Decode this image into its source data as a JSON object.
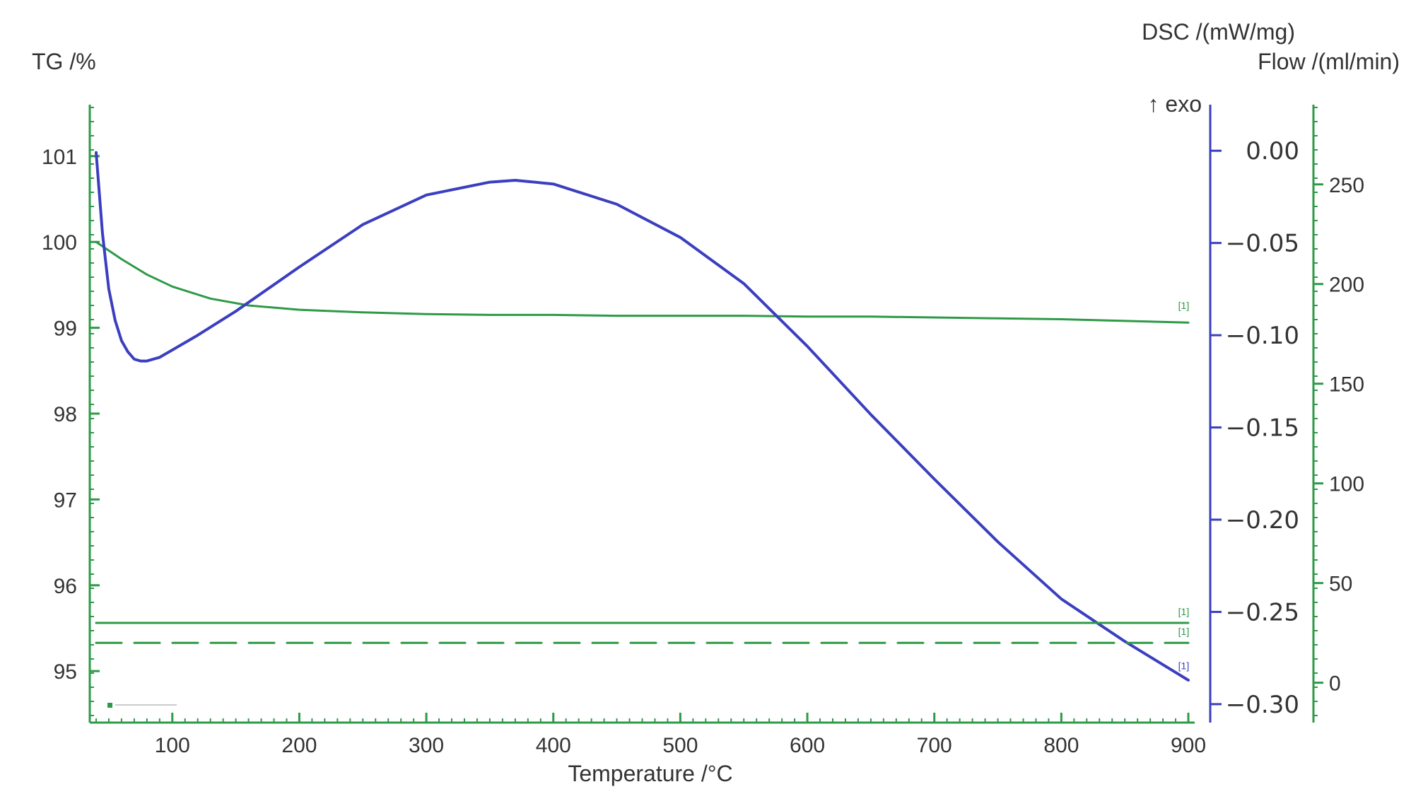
{
  "colors": {
    "tg": "#2e9a47",
    "dsc": "#3b3fbf",
    "flow": "#2e9a47",
    "text": "#333333"
  },
  "chart_data": {
    "type": "line",
    "title": "",
    "xlabel": "Temperature /°C",
    "xlim": [
      35,
      905
    ],
    "x_ticks": [
      100,
      200,
      300,
      400,
      500,
      600,
      700,
      800,
      900
    ],
    "y_axes": {
      "tg": {
        "label": "TG /%",
        "lim": [
          94.4,
          101.6
        ],
        "ticks": [
          95,
          96,
          97,
          98,
          99,
          100,
          101
        ]
      },
      "dsc": {
        "label": "DSC /(mW/mg)",
        "exo_label": "↑ exo",
        "lim": [
          -0.31,
          0.025
        ],
        "ticks": [
          0.0,
          -0.05,
          -0.1,
          -0.15,
          -0.2,
          -0.25,
          -0.3
        ],
        "tick_labels": [
          "0.00",
          "−0.05",
          "−0.10",
          "−0.15",
          "−0.20",
          "−0.25",
          "−0.30"
        ]
      },
      "flow": {
        "label": "Flow /(ml/min)",
        "lim": [
          -20,
          290
        ],
        "ticks": [
          0,
          50,
          100,
          150,
          200,
          250
        ]
      }
    },
    "grid": false,
    "series": [
      {
        "axis": "tg",
        "style": "solid",
        "x": [
          40,
          60,
          80,
          100,
          130,
          160,
          200,
          250,
          300,
          350,
          400,
          450,
          500,
          550,
          600,
          650,
          700,
          750,
          800,
          850,
          900
        ],
        "y": [
          100.0,
          99.8,
          99.62,
          99.48,
          99.34,
          99.26,
          99.21,
          99.18,
          99.16,
          99.15,
          99.15,
          99.14,
          99.14,
          99.14,
          99.13,
          99.13,
          99.12,
          99.11,
          99.1,
          99.08,
          99.06
        ]
      },
      {
        "axis": "dsc",
        "style": "solid",
        "x": [
          40,
          45,
          50,
          55,
          60,
          65,
          70,
          75,
          80,
          90,
          100,
          120,
          150,
          200,
          250,
          300,
          350,
          370,
          400,
          450,
          500,
          550,
          600,
          650,
          700,
          750,
          800,
          850,
          900
        ],
        "y": [
          -0.001,
          -0.045,
          -0.075,
          -0.092,
          -0.103,
          -0.109,
          -0.113,
          -0.114,
          -0.114,
          -0.112,
          -0.108,
          -0.1,
          -0.087,
          -0.063,
          -0.04,
          -0.024,
          -0.017,
          -0.016,
          -0.018,
          -0.029,
          -0.047,
          -0.072,
          -0.106,
          -0.143,
          -0.178,
          -0.212,
          -0.243,
          -0.266,
          -0.287
        ]
      },
      {
        "axis": "flow",
        "style": "solid",
        "x": [
          40,
          900
        ],
        "y": [
          30,
          30
        ]
      },
      {
        "axis": "flow",
        "style": "dashed",
        "x": [
          40,
          900
        ],
        "y": [
          20,
          20
        ]
      }
    ],
    "markers": [
      {
        "text": "[1]",
        "axis": "tg",
        "x": 892,
        "y": 99.22
      },
      {
        "text": "[1]",
        "axis": "flow",
        "x": 892,
        "y": 34
      },
      {
        "text": "[1]",
        "axis": "flow",
        "x": 892,
        "y": 24
      },
      {
        "text": "[1]",
        "axis": "dsc",
        "x": 892,
        "y": -0.281
      }
    ]
  }
}
